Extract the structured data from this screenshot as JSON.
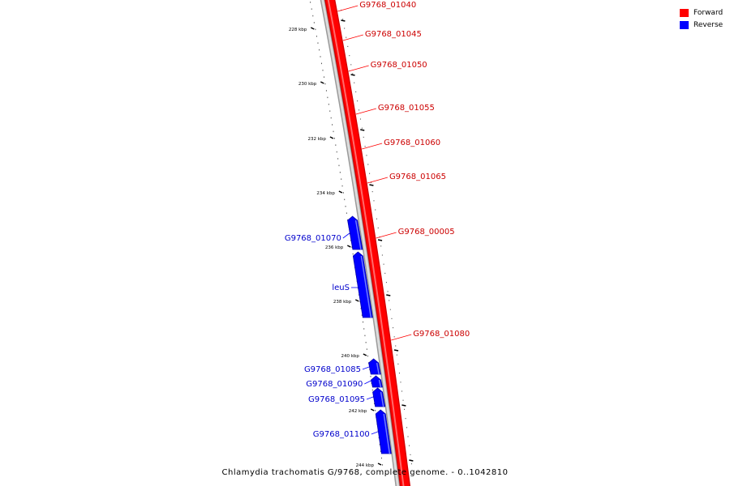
{
  "legend": {
    "forward_label": "Forward",
    "reverse_label": "Reverse",
    "forward_color": "#ff0000",
    "reverse_color": "#0000ff"
  },
  "caption": "Chlamydia trachomatis G/9768, complete genome. - 0..1042810",
  "ruler": {
    "ticks": [
      "228 kbp",
      "230 kbp",
      "232 kbp",
      "234 kbp",
      "236 kbp",
      "238 kbp",
      "240 kbp",
      "242 kbp",
      "244 kbp"
    ]
  },
  "genes": [
    {
      "name": "G9768_01040",
      "strand": "forward"
    },
    {
      "name": "G9768_01045",
      "strand": "forward"
    },
    {
      "name": "G9768_01050",
      "strand": "forward"
    },
    {
      "name": "G9768_01055",
      "strand": "forward"
    },
    {
      "name": "G9768_01060",
      "strand": "forward"
    },
    {
      "name": "G9768_01065",
      "strand": "forward"
    },
    {
      "name": "G9768_00005",
      "strand": "forward"
    },
    {
      "name": "G9768_01080",
      "strand": "forward"
    },
    {
      "name": "G9768_01070",
      "strand": "reverse"
    },
    {
      "name": "leuS",
      "strand": "reverse"
    },
    {
      "name": "G9768_01085",
      "strand": "reverse"
    },
    {
      "name": "G9768_01090",
      "strand": "reverse"
    },
    {
      "name": "G9768_01095",
      "strand": "reverse"
    },
    {
      "name": "G9768_01100",
      "strand": "reverse"
    }
  ]
}
